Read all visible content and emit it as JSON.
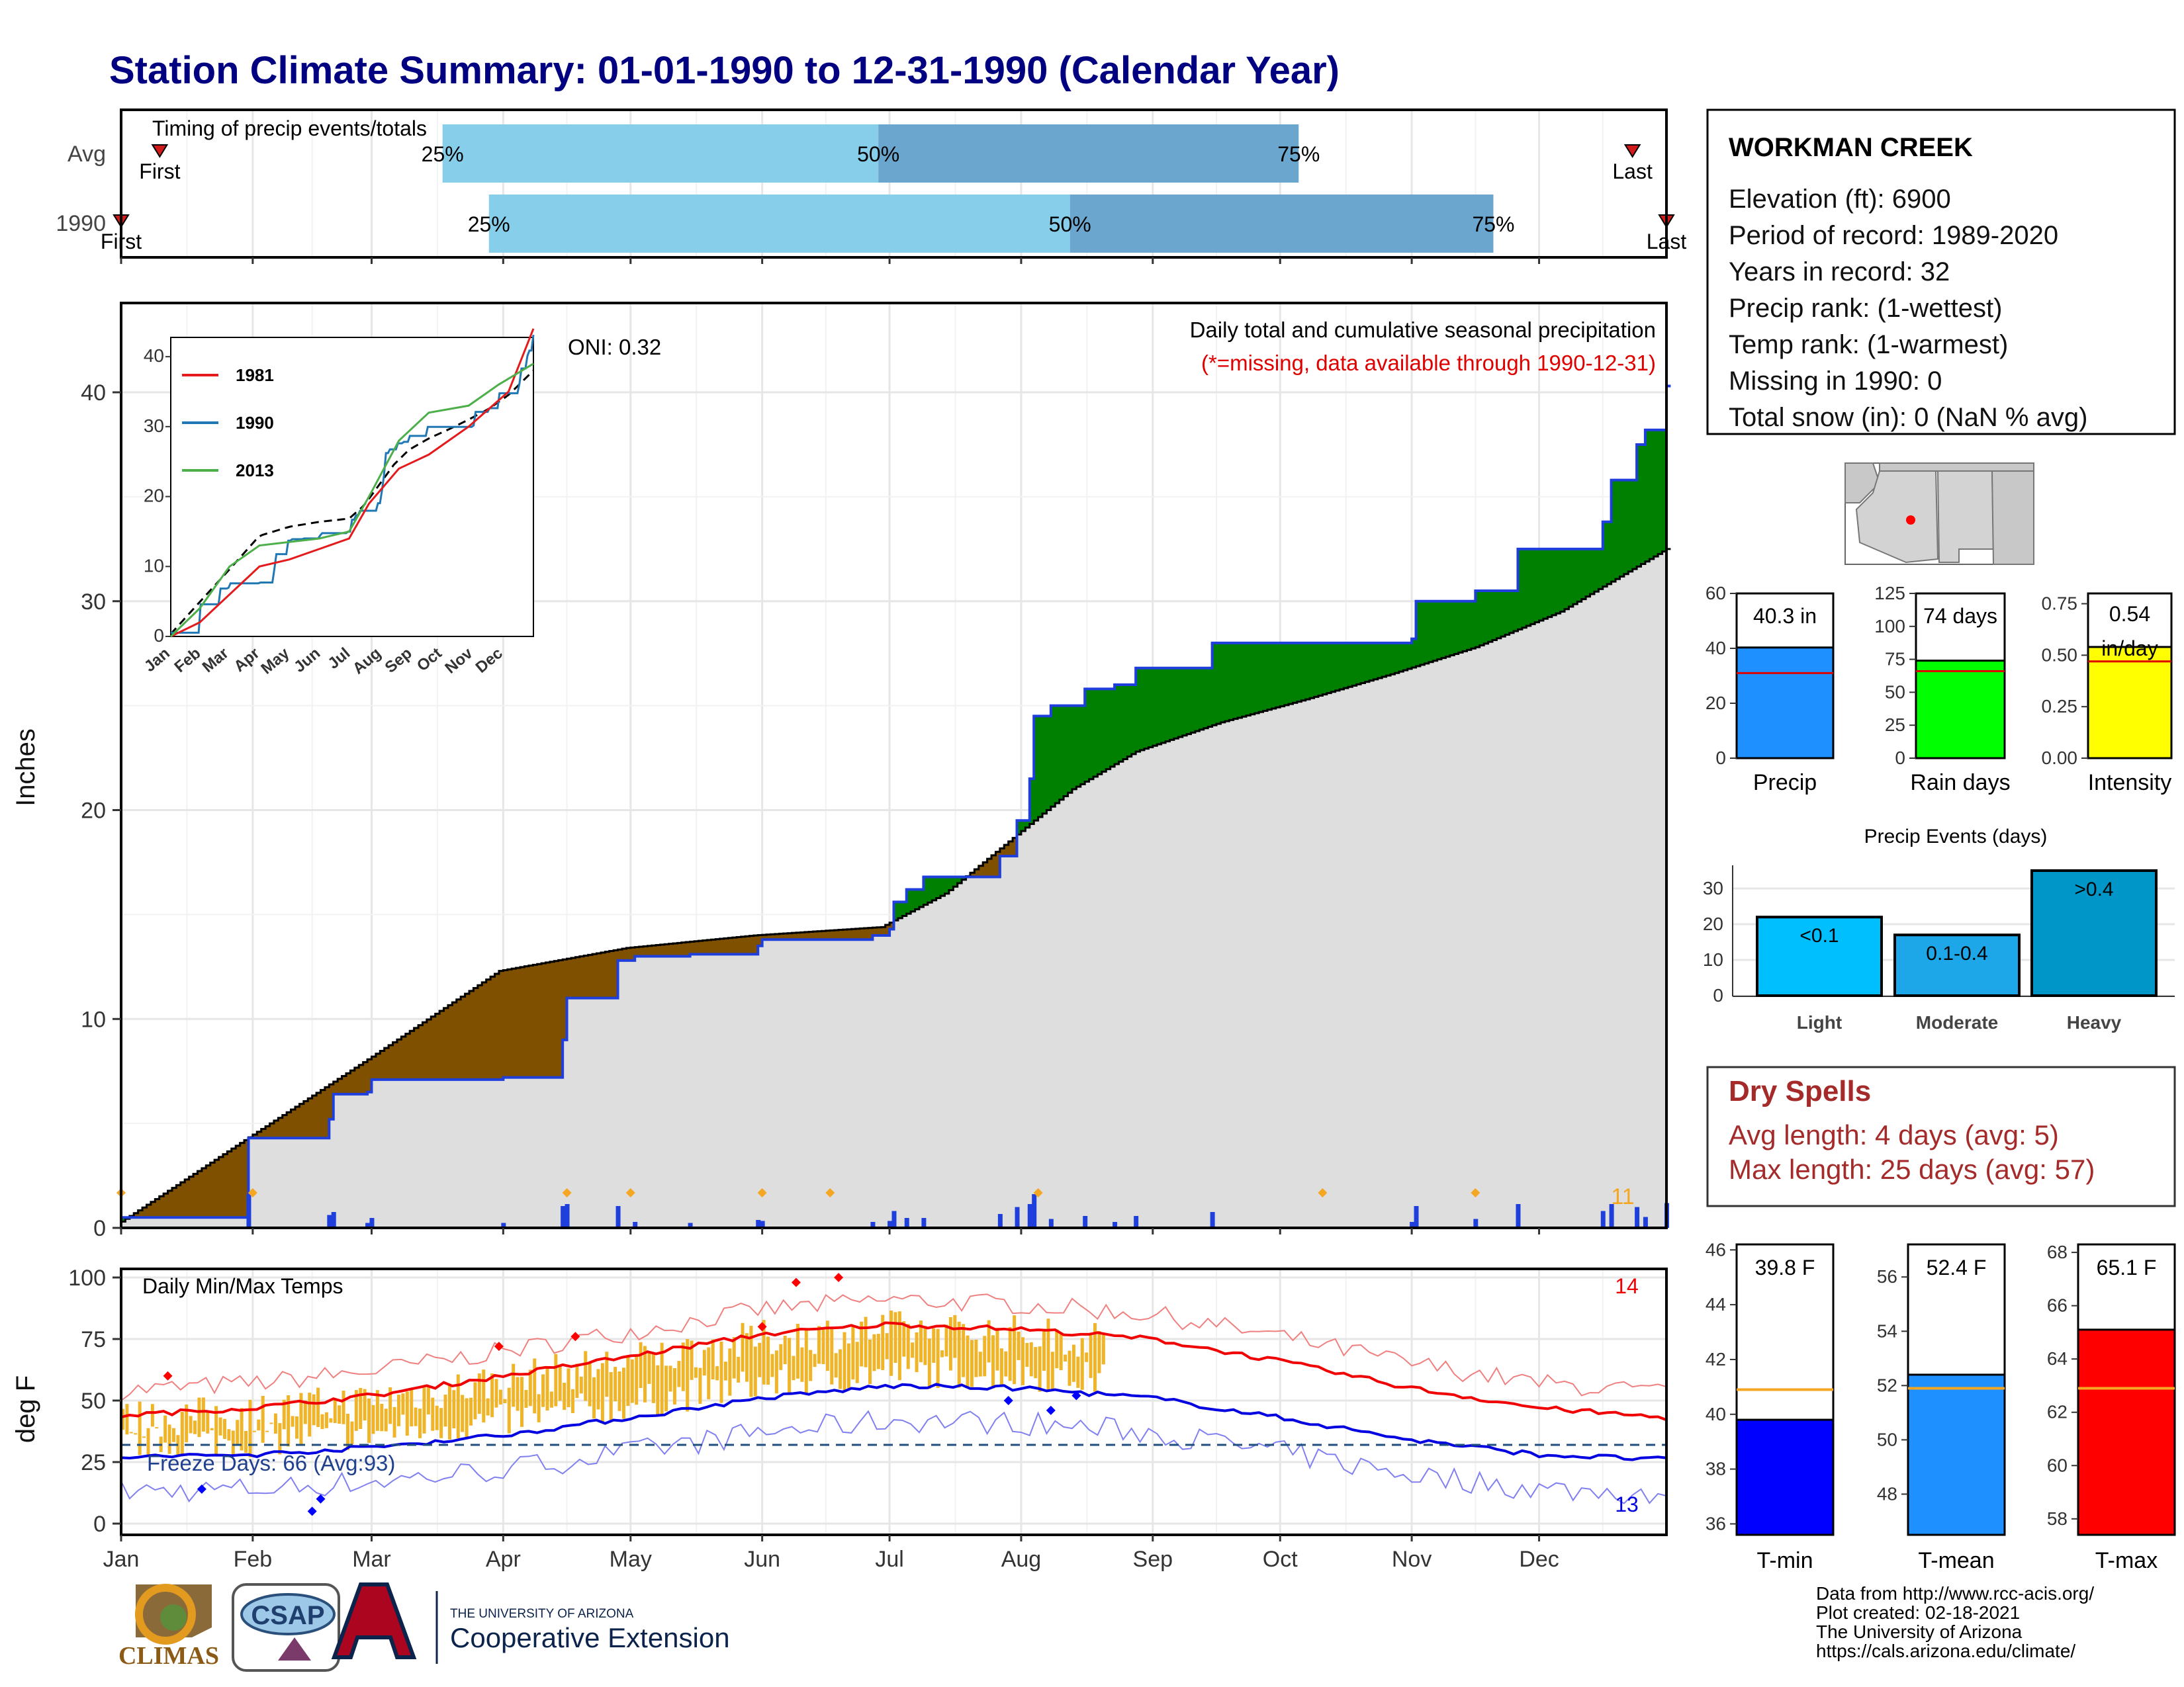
{
  "title": "Station Climate Summary: 01-01-1990 to 12-31-1990 (Calendar Year)",
  "colors": {
    "title": "#000080",
    "q1": "#87CEEB",
    "q2": "#6BA6CE",
    "marker": "#D11A1A",
    "brown": "#7F5000",
    "green": "#008000",
    "blue": "#1F3FDD",
    "gray_area": "#DEDEDE",
    "orange": "#F5A623",
    "tmax": "#F00000",
    "tmin": "#0000E0",
    "temp_bar": "#F0B429",
    "dry": "#A52A2A",
    "precip_bar": "#1E90FF",
    "rain_bar": "#00FF00",
    "int_bar": "#FFFF00",
    "light": "#00BFFF",
    "moderate": "#1EA7E8",
    "heavy": "#0096C7",
    "tmin_bar": "#0000FF",
    "tmean_bar": "#1E90FF",
    "tmax_bar": "#FF0000",
    "avg_line": "#F5A623"
  },
  "timing_panel": {
    "label": "Timing of precip events/totals",
    "rows": [
      {
        "name": "Avg",
        "q25": 0.208,
        "q50": 0.49,
        "q75": 0.762,
        "first": 0.025,
        "last": 0.978,
        "first_label": "First",
        "last_label": "Last",
        "p25": "25%",
        "p50": "50%",
        "p75": "75%"
      },
      {
        "name": "1990",
        "q25": 0.238,
        "q50": 0.614,
        "q75": 0.888,
        "first": 0.0,
        "last": 1.0,
        "first_label": "First",
        "last_label": "Last",
        "p25": "25%",
        "p50": "50%",
        "p75": "75%"
      }
    ]
  },
  "precip_panel": {
    "oni": "ONI: 0.32",
    "caption": "Daily total and cumulative seasonal precipitation",
    "missing_note": "(*=missing, data available through 1990-12-31)",
    "ylabel": "Inches",
    "yticks": [
      "0",
      "10",
      "20",
      "30",
      "40"
    ],
    "count_label": "11"
  },
  "temp_panel": {
    "label": "Daily Min/Max Temps",
    "ylabel": "deg F",
    "yticks": [
      "0",
      "25",
      "50",
      "75",
      "100"
    ],
    "freeze_label": "Freeze Days: 66 (Avg:93)",
    "max_count": "14",
    "min_count": "13"
  },
  "months": [
    "Jan",
    "Feb",
    "Mar",
    "Apr",
    "May",
    "Jun",
    "Jul",
    "Aug",
    "Sep",
    "Oct",
    "Nov",
    "Dec"
  ],
  "inset": {
    "legend": [
      "1981",
      "1990",
      "2013"
    ],
    "yticks": [
      "0",
      "10",
      "20",
      "30",
      "40"
    ],
    "months": [
      "Jan",
      "Feb",
      "Mar",
      "Apr",
      "May",
      "Jun",
      "Jul",
      "Aug",
      "Sep",
      "Oct",
      "Nov",
      "Dec"
    ]
  },
  "station": {
    "name": "WORKMAN CREEK",
    "lines": [
      "Elevation (ft): 6900",
      "Period of record: 1989-2020",
      "Years in record: 32",
      "Precip rank:  (1-wettest)",
      "Temp rank:  (1-warmest)",
      "Missing in 1990: 0",
      "Total snow (in): 0 (NaN % avg)"
    ]
  },
  "mini_bars": [
    {
      "label": "Precip",
      "value_text": "40.3 in",
      "yticks": [
        "0",
        "20",
        "40",
        "60"
      ]
    },
    {
      "label": "Rain days",
      "value_text": "74 days",
      "yticks": [
        "0",
        "25",
        "50",
        "75",
        "100",
        "125"
      ]
    },
    {
      "label": "Intensity",
      "value_text": "0.54 in/day",
      "yticks": [
        "0.00",
        "0.25",
        "0.50",
        "0.75"
      ]
    }
  ],
  "precip_events": {
    "title": "Precip Events (days)",
    "yticks": [
      "0",
      "10",
      "20",
      "30"
    ],
    "categories": [
      "Light",
      "Moderate",
      "Heavy"
    ],
    "bar_labels": [
      "<0.1",
      "0.1-0.4",
      ">0.4"
    ]
  },
  "dry_spells": {
    "title": "Dry Spells",
    "avg_line": "Avg length: 4 days (avg: 5)",
    "max_line": "Max length: 25 days (avg: 57)"
  },
  "temp_bars": [
    {
      "label": "T-min",
      "value_text": "39.8 F",
      "yticks": [
        "36",
        "38",
        "40",
        "42",
        "44",
        "46"
      ]
    },
    {
      "label": "T-mean",
      "value_text": "52.4 F",
      "yticks": [
        "48",
        "50",
        "52",
        "54",
        "56"
      ]
    },
    {
      "label": "T-max",
      "value_text": "65.1 F",
      "yticks": [
        "58",
        "60",
        "62",
        "64",
        "66",
        "68"
      ]
    }
  ],
  "footer": {
    "credits": [
      "Data from http://www.rcc-acis.org/",
      "Plot created: 02-18-2021",
      "The University of Arizona",
      "https://cals.arizona.edu/climate/"
    ],
    "climas": "CLIMAS",
    "csap": "CSAP",
    "ua_small": "THE UNIVERSITY OF ARIZONA",
    "ua_big": "Cooperative Extension"
  },
  "chart_data": [
    {
      "type": "area",
      "title": "Daily total and cumulative seasonal precipitation",
      "ylabel": "Inches",
      "ylim": [
        0,
        44
      ],
      "x_months": [
        "Jan",
        "Feb",
        "Mar",
        "Apr",
        "May",
        "Jun",
        "Jul",
        "Aug",
        "Sep",
        "Oct",
        "Nov",
        "Dec"
      ],
      "series": [
        {
          "name": "1990",
          "x_doy": [
            1,
            31,
            32,
            50,
            51,
            59,
            60,
            91,
            105,
            106,
            118,
            122,
            135,
            151,
            152,
            178,
            182,
            183,
            186,
            190,
            208,
            212,
            215,
            216,
            220,
            222,
            228,
            235,
            240,
            258,
            262,
            268,
            305,
            306,
            320,
            330,
            350,
            352,
            358,
            360,
            365
          ],
          "values": [
            0.5,
            4.3,
            4.3,
            5.2,
            6.4,
            6.5,
            7.1,
            7.2,
            9.0,
            11.0,
            12.8,
            13.0,
            13.1,
            13.5,
            13.8,
            14.0,
            14.3,
            15.6,
            16.2,
            16.8,
            17.8,
            19.5,
            21.5,
            24.5,
            25.0,
            25.0,
            25.8,
            26.0,
            26.8,
            28.0,
            28.0,
            28.0,
            28.2,
            30.0,
            30.5,
            32.5,
            33.8,
            35.8,
            37.5,
            38.2,
            40.3
          ]
        },
        {
          "name": "Avg",
          "x_doy": [
            1,
            30,
            60,
            90,
            120,
            150,
            180,
            195,
            210,
            225,
            240,
            260,
            280,
            300,
            320,
            340,
            365
          ],
          "values": [
            0.3,
            4.2,
            8.2,
            12.3,
            13.4,
            14.0,
            14.4,
            16.0,
            18.5,
            21.0,
            22.8,
            24.2,
            25.3,
            26.5,
            27.8,
            29.5,
            32.5
          ]
        }
      ]
    },
    {
      "type": "line",
      "title": "Daily Min/Max Temps",
      "ylabel": "deg F",
      "ylim": [
        0,
        105
      ],
      "series": [
        {
          "name": "Avg max",
          "x_doy": [
            1,
            32,
            60,
            91,
            121,
            152,
            182,
            213,
            244,
            274,
            305,
            335,
            365
          ],
          "values": [
            44,
            47,
            52,
            60,
            68,
            77,
            81,
            79,
            75,
            66,
            55,
            47,
            43
          ]
        },
        {
          "name": "Avg min",
          "x_doy": [
            1,
            32,
            60,
            91,
            121,
            152,
            182,
            213,
            244,
            274,
            305,
            335,
            365
          ],
          "values": [
            27,
            28,
            31,
            36,
            43,
            51,
            56,
            55,
            51,
            43,
            34,
            28,
            26
          ]
        },
        {
          "name": "Freeze threshold",
          "x_doy": [
            1,
            365
          ],
          "values": [
            32,
            32
          ]
        }
      ]
    },
    {
      "type": "bar",
      "title": "Precip Events (days)",
      "categories": [
        "Light",
        "Moderate",
        "Heavy"
      ],
      "values": [
        22,
        17,
        35
      ],
      "ylim": [
        0,
        35
      ]
    },
    {
      "type": "bar",
      "title": "Seasonal totals",
      "categories": [
        "Precip",
        "Rain days",
        "Intensity"
      ],
      "values": [
        40.3,
        74,
        0.54
      ],
      "averages": [
        31,
        66,
        0.47
      ]
    },
    {
      "type": "bar",
      "title": "Temperature means",
      "categories": [
        "T-min",
        "T-mean",
        "T-max"
      ],
      "values": [
        39.8,
        52.4,
        65.1
      ],
      "averages": [
        40.9,
        51.9,
        62.9
      ]
    }
  ]
}
